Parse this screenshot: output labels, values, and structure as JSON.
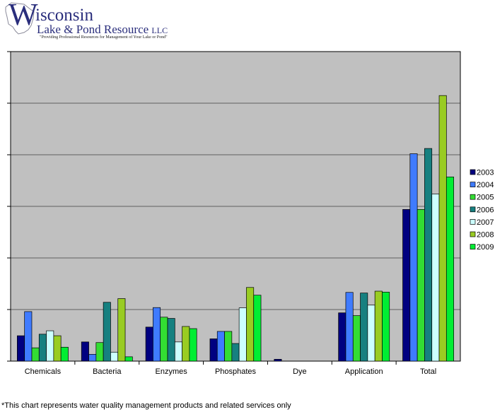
{
  "logo": {
    "letter": "W",
    "name_line1_rest": "isconsin",
    "name_line2": "Lake & Pond Resource",
    "name_suffix": "LLC",
    "tagline": "\"Providing Professional Resources for Management of Your Lake or Pond\""
  },
  "footnote": "*This chart represents water quality management products and related services only",
  "colors": {
    "plot_bg": "#c0c0c0",
    "grid": "#000000",
    "series": [
      "#000080",
      "#3f7bff",
      "#33dd33",
      "#168080",
      "#ccffff",
      "#99cc22",
      "#00ee33"
    ]
  },
  "chart_data": {
    "type": "bar",
    "title": "",
    "xlabel": "",
    "ylabel": "",
    "ylim": [
      0,
      100
    ],
    "grid": true,
    "legend": "right",
    "categories": [
      "Chemicals",
      "Bacteria",
      "Enzymes",
      "Phosphates",
      "Dye",
      "Application",
      "Total"
    ],
    "series": [
      {
        "name": "2003",
        "values": [
          8.2,
          6.2,
          11.0,
          7.2,
          0.6,
          15.6,
          49.0
        ]
      },
      {
        "name": "2004",
        "values": [
          16.0,
          2.2,
          17.3,
          9.6,
          0,
          22.2,
          67.0
        ]
      },
      {
        "name": "2005",
        "values": [
          4.3,
          6.0,
          14.2,
          9.6,
          0,
          14.7,
          49.0
        ]
      },
      {
        "name": "2006",
        "values": [
          8.7,
          19.0,
          13.8,
          5.7,
          0,
          22.0,
          68.7
        ]
      },
      {
        "name": "2007",
        "values": [
          9.8,
          2.9,
          6.2,
          17.2,
          0,
          18.1,
          54.0
        ]
      },
      {
        "name": "2008",
        "values": [
          8.2,
          20.2,
          11.2,
          23.8,
          0,
          22.6,
          85.8
        ]
      },
      {
        "name": "2009",
        "values": [
          4.5,
          1.4,
          10.5,
          21.3,
          0,
          22.3,
          59.5
        ]
      }
    ]
  }
}
